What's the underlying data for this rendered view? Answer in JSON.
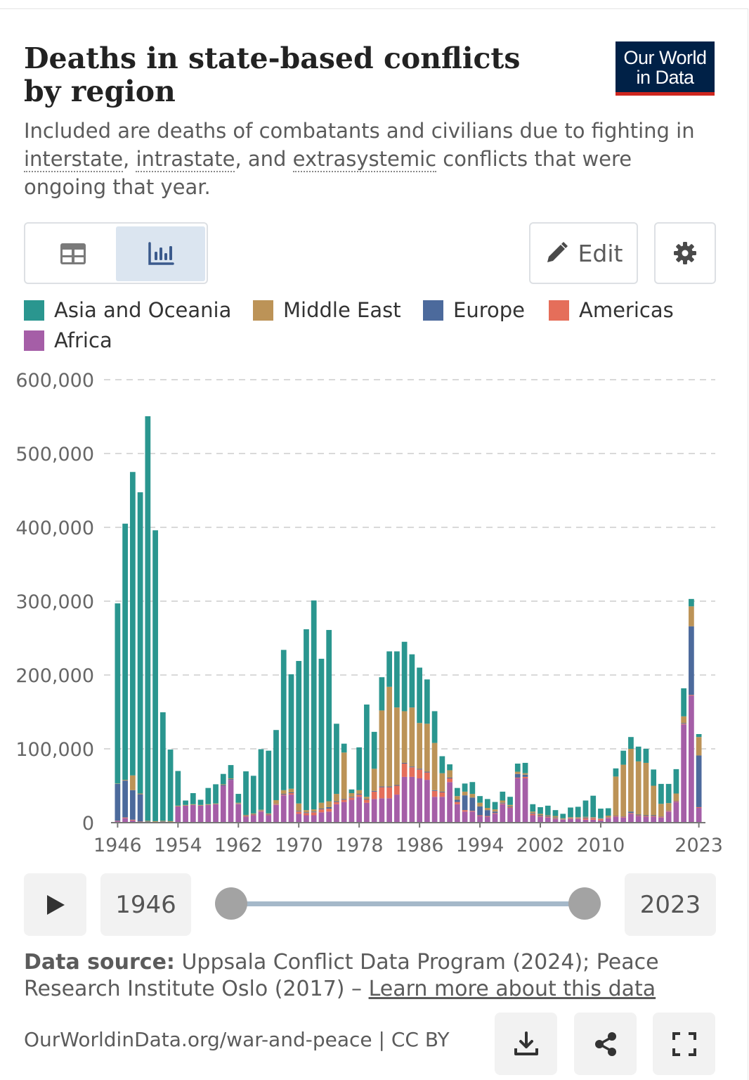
{
  "header": {
    "title": "Deaths in state-based conflicts by region",
    "logo_line1": "Our World",
    "logo_line2": "in Data",
    "subtitle_parts": {
      "p1": "Included are deaths of combatants and civilians due to fighting in ",
      "link1": "interstate",
      "p2": ", ",
      "link2": "intrastate",
      "p3": ", and ",
      "link3": "extrasystemic",
      "p4": " conflicts that were ongoing that year."
    }
  },
  "controls": {
    "edit_label": "Edit",
    "icons": {
      "table": "table-icon",
      "chart": "bar-chart-icon",
      "edit": "pencil-icon",
      "settings": "gear-icon"
    }
  },
  "timeline": {
    "start_year": "1946",
    "end_year": "2023",
    "play_icon": "play-icon"
  },
  "footer": {
    "source_label": "Data source:",
    "source_text": " Uppsala Conflict Data Program (2024); Peace Research Institute Oslo (2017) – ",
    "learn_more": "Learn more about this data",
    "url": "OurWorldinData.org/war-and-peace | CC BY",
    "icons": [
      "download-icon",
      "share-icon",
      "fullscreen-icon"
    ]
  },
  "colors": {
    "Asia and Oceania": "#2a968f",
    "Middle East": "#bc9357",
    "Europe": "#4c6a9c",
    "Americas": "#e56e5a",
    "Africa": "#a55ea7"
  },
  "chart_data": {
    "type": "bar",
    "stacked": true,
    "ylim": [
      0,
      600000
    ],
    "yticks": [
      "0",
      "100,000",
      "200,000",
      "300,000",
      "400,000",
      "500,000",
      "600,000"
    ],
    "xticks": [
      "1946",
      "1954",
      "1962",
      "1970",
      "1978",
      "1986",
      "1994",
      "2002",
      "2010",
      "2023"
    ],
    "grid": true,
    "legend_position": "top",
    "categories": [
      "1946",
      "1947",
      "1948",
      "1949",
      "1950",
      "1951",
      "1952",
      "1953",
      "1954",
      "1955",
      "1956",
      "1957",
      "1958",
      "1959",
      "1960",
      "1961",
      "1962",
      "1963",
      "1964",
      "1965",
      "1966",
      "1967",
      "1968",
      "1969",
      "1970",
      "1971",
      "1972",
      "1973",
      "1974",
      "1975",
      "1976",
      "1977",
      "1978",
      "1979",
      "1980",
      "1981",
      "1982",
      "1983",
      "1984",
      "1985",
      "1986",
      "1987",
      "1988",
      "1989",
      "1990",
      "1991",
      "1992",
      "1993",
      "1994",
      "1995",
      "1996",
      "1997",
      "1998",
      "1999",
      "2000",
      "2001",
      "2002",
      "2003",
      "2004",
      "2005",
      "2006",
      "2007",
      "2008",
      "2009",
      "2010",
      "2011",
      "2012",
      "2013",
      "2014",
      "2015",
      "2016",
      "2017",
      "2018",
      "2019",
      "2020",
      "2021",
      "2022",
      "2023"
    ],
    "series": [
      {
        "name": "Africa",
        "values": [
          2000,
          6000,
          3000,
          1000,
          500,
          500,
          1000,
          1000,
          22000,
          23000,
          24000,
          23000,
          24000,
          25000,
          50000,
          58000,
          25000,
          8000,
          10000,
          15000,
          10000,
          24000,
          37000,
          38000,
          12000,
          10000,
          10000,
          14000,
          15000,
          25000,
          28000,
          31000,
          35000,
          27000,
          32000,
          33000,
          33000,
          38000,
          62000,
          62000,
          60000,
          58000,
          35000,
          35000,
          55000,
          25000,
          15000,
          15000,
          9000,
          8000,
          12000,
          25000,
          20000,
          60000,
          60000,
          10000,
          8000,
          7000,
          5000,
          4000,
          5000,
          5000,
          4000,
          4000,
          3000,
          6000,
          8000,
          7000,
          12000,
          9000,
          8000,
          8000,
          7000,
          15000,
          28000,
          133000,
          172000,
          20000
        ]
      },
      {
        "name": "Americas",
        "values": [
          500,
          1000,
          1000,
          500,
          0,
          0,
          0,
          0,
          0,
          0,
          0,
          0,
          0,
          0,
          0,
          0,
          500,
          1000,
          1000,
          1000,
          1000,
          1000,
          1000,
          2000,
          3000,
          3000,
          4000,
          4000,
          4000,
          3000,
          3000,
          3000,
          3000,
          4000,
          10000,
          15000,
          15000,
          12000,
          18000,
          13000,
          12000,
          10000,
          8000,
          6000,
          5000,
          3000,
          2000,
          1000,
          1000,
          1000,
          1000,
          1000,
          1000,
          1000,
          2000,
          2000,
          1000,
          1000,
          1000,
          500,
          1000,
          1000,
          2000,
          2000,
          2000,
          1000,
          1000,
          1000,
          1000,
          1000,
          1000,
          1000,
          1000,
          1000,
          1000,
          1000,
          1000,
          1000
        ]
      },
      {
        "name": "Europe",
        "values": [
          50000,
          50000,
          40000,
          37000,
          1000,
          500,
          500,
          0,
          0,
          0,
          0,
          0,
          0,
          0,
          1000,
          1000,
          500,
          500,
          500,
          500,
          500,
          500,
          1000,
          1000,
          1000,
          1000,
          1000,
          1000,
          2000,
          1000,
          1000,
          1000,
          1000,
          1000,
          1000,
          1000,
          1000,
          1000,
          1000,
          1000,
          1000,
          1000,
          1000,
          1000,
          1000,
          3000,
          20000,
          18000,
          12000,
          8000,
          2000,
          1000,
          1000,
          5000,
          3000,
          1000,
          1000,
          1000,
          1000,
          500,
          500,
          500,
          1000,
          500,
          500,
          500,
          500,
          500,
          2000,
          1000,
          1000,
          1000,
          500,
          500,
          500,
          1000,
          93000,
          70000
        ]
      },
      {
        "name": "Middle East",
        "values": [
          500,
          1000,
          20000,
          1000,
          1000,
          1000,
          1000,
          1000,
          1000,
          1000,
          1000,
          1000,
          1000,
          1000,
          1000,
          1000,
          1000,
          1000,
          1000,
          1000,
          1000,
          5000,
          5000,
          5000,
          10000,
          3000,
          3000,
          8000,
          8000,
          10000,
          63000,
          5000,
          5000,
          3000,
          30000,
          103000,
          135000,
          105000,
          70000,
          80000,
          62000,
          65000,
          64000,
          25000,
          10000,
          5000,
          5000,
          5000,
          5000,
          3000,
          3000,
          3000,
          2000,
          3000,
          2000,
          2000,
          2000,
          1000,
          2000,
          1000,
          1000,
          1000,
          1000,
          1000,
          500,
          2000,
          53000,
          70000,
          85000,
          72000,
          71000,
          40000,
          17000,
          10000,
          10000,
          9000,
          27000,
          25000
        ]
      },
      {
        "name": "Asia and Oceania",
        "values": [
          244000,
          347000,
          411000,
          408000,
          548000,
          394000,
          147000,
          97000,
          47000,
          6000,
          15000,
          7000,
          22000,
          26000,
          14000,
          18000,
          12000,
          59000,
          51000,
          82000,
          85000,
          95000,
          190000,
          155000,
          193000,
          245000,
          283000,
          195000,
          232000,
          95000,
          12000,
          5000,
          58000,
          125000,
          50000,
          45000,
          48000,
          76000,
          94000,
          72000,
          75000,
          60000,
          43000,
          23000,
          8000,
          11000,
          11000,
          16000,
          9000,
          12000,
          10000,
          12000,
          11000,
          11000,
          14000,
          10000,
          9000,
          13000,
          8000,
          6000,
          13000,
          14000,
          22000,
          29000,
          13000,
          10000,
          11000,
          19000,
          16000,
          20000,
          19000,
          22000,
          27000,
          26000,
          33000,
          38000,
          10000,
          4000
        ]
      }
    ]
  }
}
